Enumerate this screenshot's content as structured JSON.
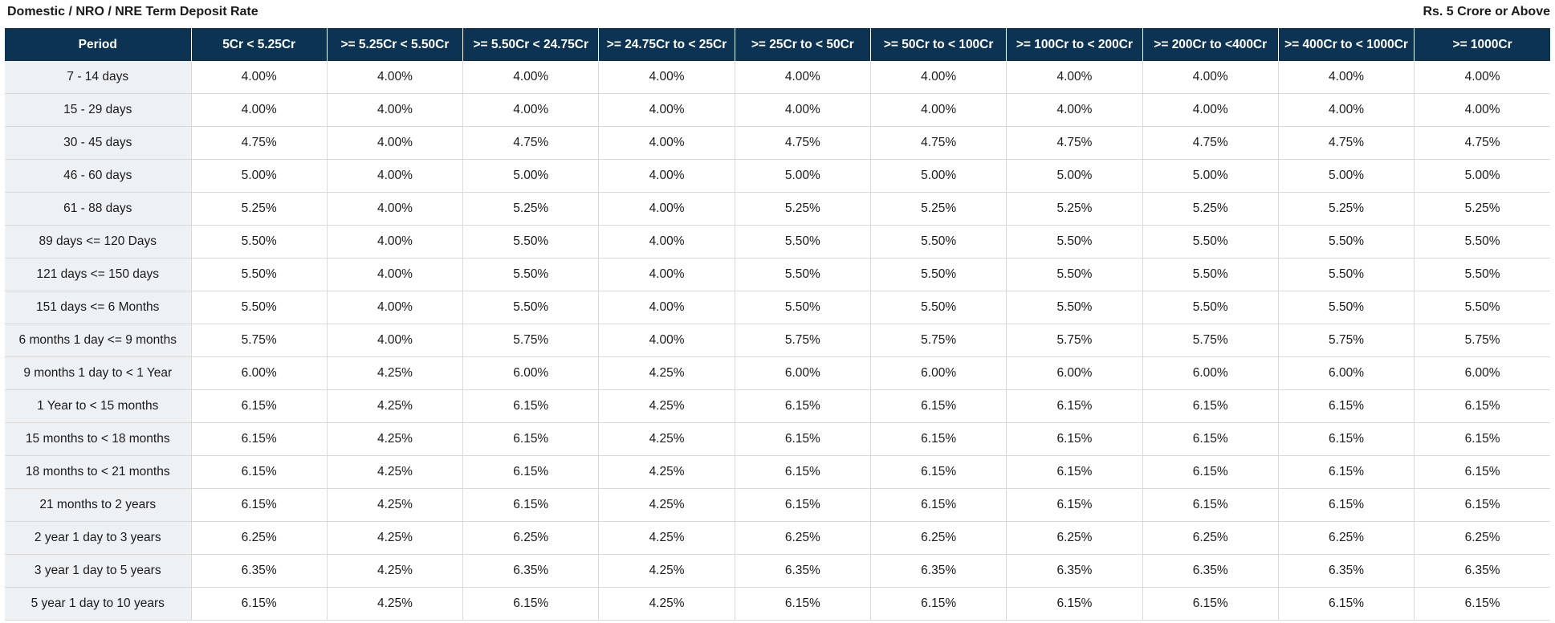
{
  "header": {
    "title": "Domestic / NRO / NRE Term Deposit Rate",
    "subtitle": "Rs. 5 Crore or Above"
  },
  "table": {
    "columns": [
      "Period",
      "5Cr < 5.25Cr",
      ">= 5.25Cr < 5.50Cr",
      ">= 5.50Cr < 24.75Cr",
      ">= 24.75Cr to < 25Cr",
      ">= 25Cr to < 50Cr",
      ">= 50Cr to < 100Cr",
      ">= 100Cr to < 200Cr",
      ">= 200Cr to <400Cr",
      ">= 400Cr to < 1000Cr",
      ">= 1000Cr"
    ],
    "rows": [
      [
        "7 - 14 days",
        "4.00%",
        "4.00%",
        "4.00%",
        "4.00%",
        "4.00%",
        "4.00%",
        "4.00%",
        "4.00%",
        "4.00%",
        "4.00%"
      ],
      [
        "15 - 29 days",
        "4.00%",
        "4.00%",
        "4.00%",
        "4.00%",
        "4.00%",
        "4.00%",
        "4.00%",
        "4.00%",
        "4.00%",
        "4.00%"
      ],
      [
        "30 - 45 days",
        "4.75%",
        "4.00%",
        "4.75%",
        "4.00%",
        "4.75%",
        "4.75%",
        "4.75%",
        "4.75%",
        "4.75%",
        "4.75%"
      ],
      [
        "46 - 60 days",
        "5.00%",
        "4.00%",
        "5.00%",
        "4.00%",
        "5.00%",
        "5.00%",
        "5.00%",
        "5.00%",
        "5.00%",
        "5.00%"
      ],
      [
        "61 - 88 days",
        "5.25%",
        "4.00%",
        "5.25%",
        "4.00%",
        "5.25%",
        "5.25%",
        "5.25%",
        "5.25%",
        "5.25%",
        "5.25%"
      ],
      [
        "89 days <= 120 Days",
        "5.50%",
        "4.00%",
        "5.50%",
        "4.00%",
        "5.50%",
        "5.50%",
        "5.50%",
        "5.50%",
        "5.50%",
        "5.50%"
      ],
      [
        "121 days <= 150 days",
        "5.50%",
        "4.00%",
        "5.50%",
        "4.00%",
        "5.50%",
        "5.50%",
        "5.50%",
        "5.50%",
        "5.50%",
        "5.50%"
      ],
      [
        "151 days <= 6 Months",
        "5.50%",
        "4.00%",
        "5.50%",
        "4.00%",
        "5.50%",
        "5.50%",
        "5.50%",
        "5.50%",
        "5.50%",
        "5.50%"
      ],
      [
        "6 months 1 day <= 9 months",
        "5.75%",
        "4.00%",
        "5.75%",
        "4.00%",
        "5.75%",
        "5.75%",
        "5.75%",
        "5.75%",
        "5.75%",
        "5.75%"
      ],
      [
        "9 months 1 day to < 1 Year",
        "6.00%",
        "4.25%",
        "6.00%",
        "4.25%",
        "6.00%",
        "6.00%",
        "6.00%",
        "6.00%",
        "6.00%",
        "6.00%"
      ],
      [
        "1 Year to < 15 months",
        "6.15%",
        "4.25%",
        "6.15%",
        "4.25%",
        "6.15%",
        "6.15%",
        "6.15%",
        "6.15%",
        "6.15%",
        "6.15%"
      ],
      [
        "15 months to < 18 months",
        "6.15%",
        "4.25%",
        "6.15%",
        "4.25%",
        "6.15%",
        "6.15%",
        "6.15%",
        "6.15%",
        "6.15%",
        "6.15%"
      ],
      [
        "18 months to < 21 months",
        "6.15%",
        "4.25%",
        "6.15%",
        "4.25%",
        "6.15%",
        "6.15%",
        "6.15%",
        "6.15%",
        "6.15%",
        "6.15%"
      ],
      [
        "21 months to 2 years",
        "6.15%",
        "4.25%",
        "6.15%",
        "4.25%",
        "6.15%",
        "6.15%",
        "6.15%",
        "6.15%",
        "6.15%",
        "6.15%"
      ],
      [
        "2 year 1 day to 3 years",
        "6.25%",
        "4.25%",
        "6.25%",
        "4.25%",
        "6.25%",
        "6.25%",
        "6.25%",
        "6.25%",
        "6.25%",
        "6.25%"
      ],
      [
        "3 year 1 day to 5 years",
        "6.35%",
        "4.25%",
        "6.35%",
        "4.25%",
        "6.35%",
        "6.35%",
        "6.35%",
        "6.35%",
        "6.35%",
        "6.35%"
      ],
      [
        "5 year 1 day to 10 years",
        "6.15%",
        "4.25%",
        "6.15%",
        "4.25%",
        "6.15%",
        "6.15%",
        "6.15%",
        "6.15%",
        "6.15%",
        "6.15%"
      ]
    ]
  },
  "colors": {
    "header_bg": "#0d3352",
    "header_text": "#ffffff",
    "period_bg": "#edf1f4",
    "grid": "#d9d9d9"
  }
}
